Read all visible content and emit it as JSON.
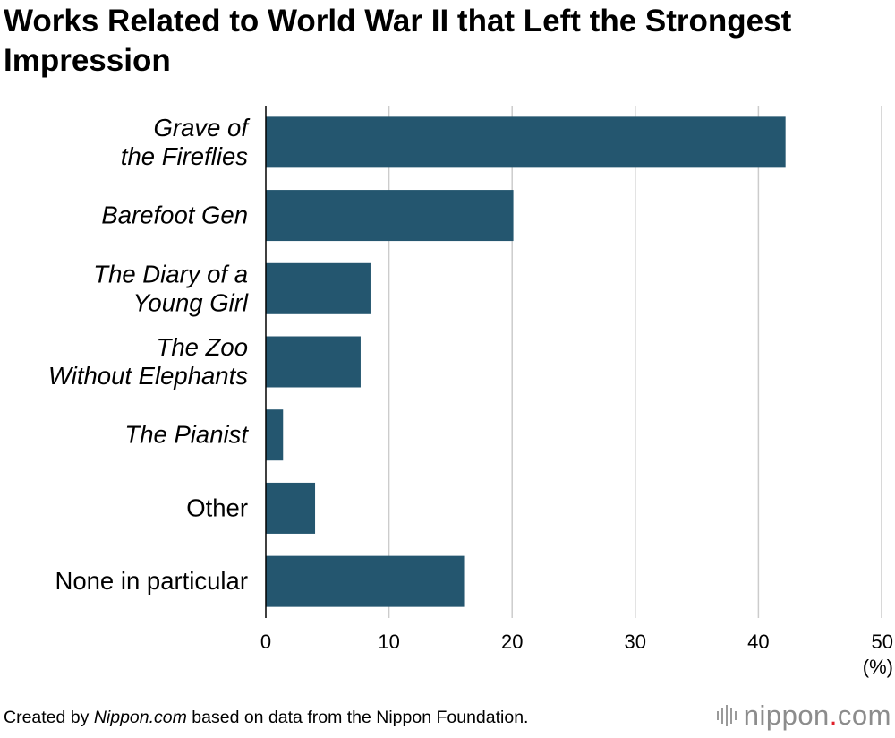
{
  "title": "Works Related to World War II that Left the Strongest Impression",
  "chart_data": {
    "type": "bar",
    "orientation": "horizontal",
    "title": "Works Related to World War II that Left the Strongest Impression",
    "categories": [
      {
        "lines": [
          "Grave of",
          "the Fireflies"
        ],
        "italic": true
      },
      {
        "lines": [
          "Barefoot Gen"
        ],
        "italic": true
      },
      {
        "lines": [
          "The Diary of a",
          "Young Girl"
        ],
        "italic": true
      },
      {
        "lines": [
          "The Zoo",
          "Without Elephants"
        ],
        "italic": true
      },
      {
        "lines": [
          "The Pianist"
        ],
        "italic": true
      },
      {
        "lines": [
          "Other"
        ],
        "italic": false
      },
      {
        "lines": [
          "None in particular"
        ],
        "italic": false
      }
    ],
    "values": [
      42.2,
      20.1,
      8.5,
      7.7,
      1.4,
      4.0,
      16.1
    ],
    "xlim": [
      0,
      50
    ],
    "xticks": [
      "0",
      "10",
      "20",
      "30",
      "40",
      "50"
    ],
    "xunit": "(%)",
    "grid": true,
    "bar_color": "#24566f",
    "grid_color": "#cccccc"
  },
  "footer": {
    "prefix": "Created by ",
    "source": "Nippon.com",
    "suffix": " based on data from the Nippon Foundation."
  },
  "brand": {
    "name": "nippon",
    "dot": ".",
    "tld": "com",
    "icon": "sound-bars-icon",
    "dot_color": "#e0202a"
  }
}
